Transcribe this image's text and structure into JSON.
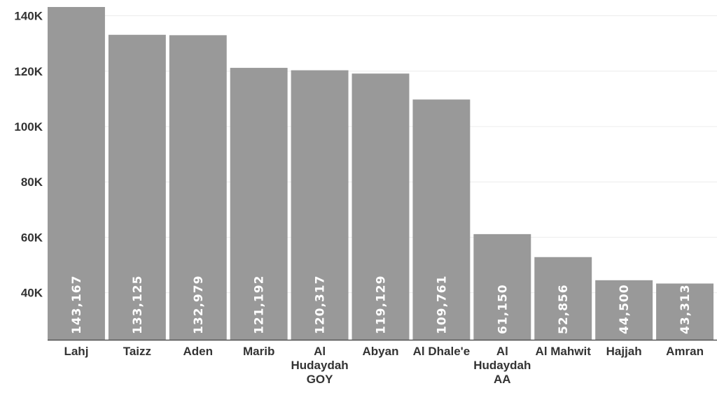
{
  "chart_data": {
    "type": "bar",
    "categories": [
      [
        "Lahj"
      ],
      [
        "Taizz"
      ],
      [
        "Aden"
      ],
      [
        "Marib"
      ],
      [
        "Al",
        "Hudaydah",
        "GOY"
      ],
      [
        "Abyan"
      ],
      [
        "Al Dhale'e"
      ],
      [
        "Al",
        "Hudaydah",
        "AA"
      ],
      [
        "Al Mahwit"
      ],
      [
        "Hajjah"
      ],
      [
        "Amran"
      ]
    ],
    "values": [
      143167,
      133125,
      132979,
      121192,
      120317,
      119129,
      109761,
      61150,
      52856,
      44500,
      43313
    ],
    "value_labels": [
      "143,167",
      "133,125",
      "132,979",
      "121,192",
      "120,317",
      "119,129",
      "109,761",
      "61,150",
      "52,856",
      "44,500",
      "43,313"
    ],
    "yticks": [
      40000,
      60000,
      80000,
      100000,
      120000,
      140000
    ],
    "ytick_labels": [
      "40K",
      "60K",
      "80K",
      "100K",
      "120K",
      "140K"
    ],
    "ylim": [
      23000,
      143167
    ],
    "grid": true,
    "colors": {
      "bar": "#999999",
      "label": "#ffffff",
      "text": "#333333",
      "grid": "#ececec"
    }
  }
}
